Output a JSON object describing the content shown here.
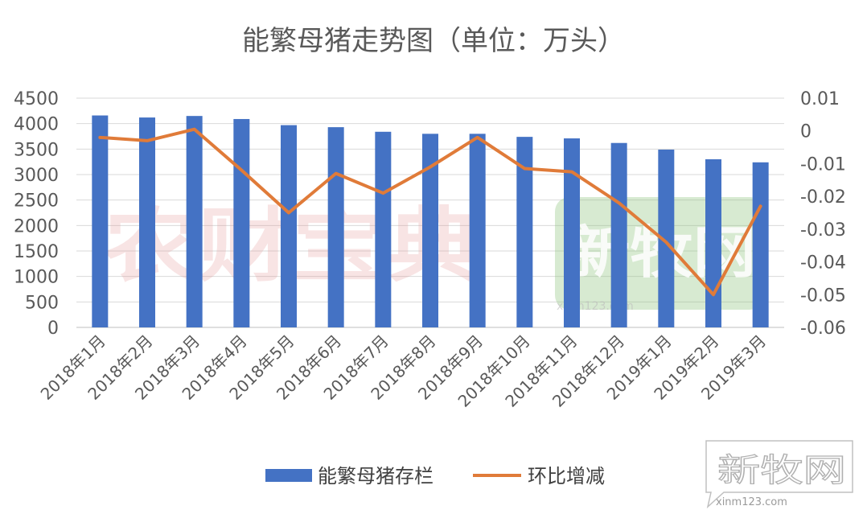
{
  "chart_data": {
    "type": "bar+line",
    "title": "能繁母猪走势图（单位：万头）",
    "categories": [
      "2018年1月",
      "2018年2月",
      "2018年3月",
      "2018年4月",
      "2018年5月",
      "2018年6月",
      "2018年7月",
      "2018年8月",
      "2018年9月",
      "2018年10月",
      "2018年11月",
      "2018年12月",
      "2019年1月",
      "2019年2月",
      "2019年3月"
    ],
    "series": [
      {
        "name": "能繁母猪存栏",
        "type": "bar",
        "axis": "left",
        "color": "#4472C4",
        "values": [
          4160,
          4120,
          4150,
          4090,
          3970,
          3930,
          3840,
          3800,
          3800,
          3740,
          3710,
          3620,
          3490,
          3300,
          3240
        ]
      },
      {
        "name": "环比增减",
        "type": "line",
        "axis": "right",
        "color": "#E07B39",
        "values": [
          -0.002,
          -0.003,
          0.0005,
          -0.012,
          -0.025,
          -0.013,
          -0.019,
          -0.011,
          -0.002,
          -0.0115,
          -0.0125,
          -0.022,
          -0.034,
          -0.05,
          -0.023
        ]
      }
    ],
    "y_left": {
      "min": 0,
      "max": 4500,
      "ticks": [
        "0",
        "500",
        "1000",
        "1500",
        "2000",
        "2500",
        "3000",
        "3500",
        "4000",
        "4500"
      ]
    },
    "y_right": {
      "min": -0.06,
      "max": 0.01,
      "ticks": [
        "-0.06",
        "-0.05",
        "-0.04",
        "-0.03",
        "-0.02",
        "-0.01",
        "0",
        "0.01"
      ]
    },
    "grid": true,
    "legend_position": "bottom"
  },
  "watermarks": {
    "center_left": "农财宝典",
    "center_right": "新牧网",
    "center_url": "xinm123.com",
    "corner": "新牧网",
    "corner_url": "xinm123.com"
  }
}
